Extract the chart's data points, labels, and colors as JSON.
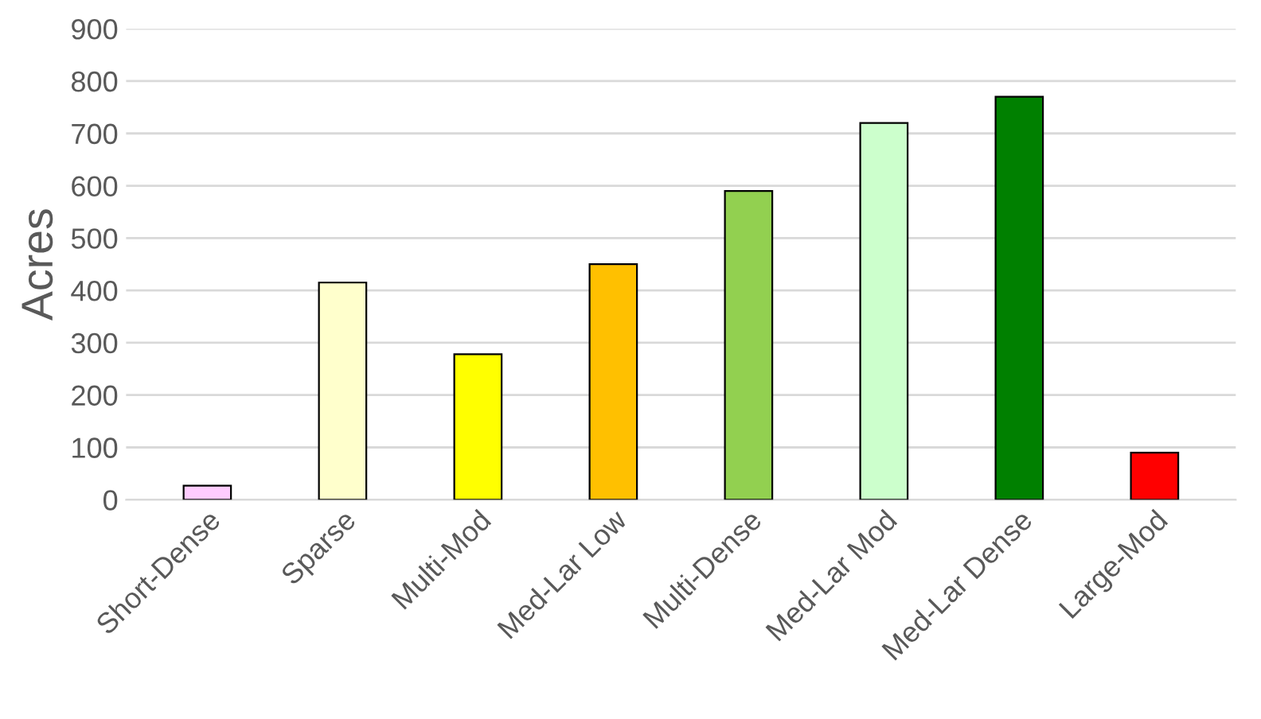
{
  "chart_data": {
    "type": "bar",
    "ylabel": "Acres",
    "categories": [
      "Short-Dense",
      "Sparse",
      "Multi-Mod",
      "Med-Lar Low",
      "Multi-Dense",
      "Med-Lar Mod",
      "Med-Lar Dense",
      "Large-Mod"
    ],
    "values": [
      27,
      415,
      278,
      450,
      590,
      720,
      770,
      90
    ],
    "colors": [
      "#ffccff",
      "#ffffcc",
      "#ffff00",
      "#ffc000",
      "#92d050",
      "#ccffcc",
      "#008000",
      "#ff0000"
    ],
    "ylim": [
      0,
      900
    ],
    "yticks": [
      0,
      100,
      200,
      300,
      400,
      500,
      600,
      700,
      800,
      900
    ],
    "grid": "y"
  }
}
